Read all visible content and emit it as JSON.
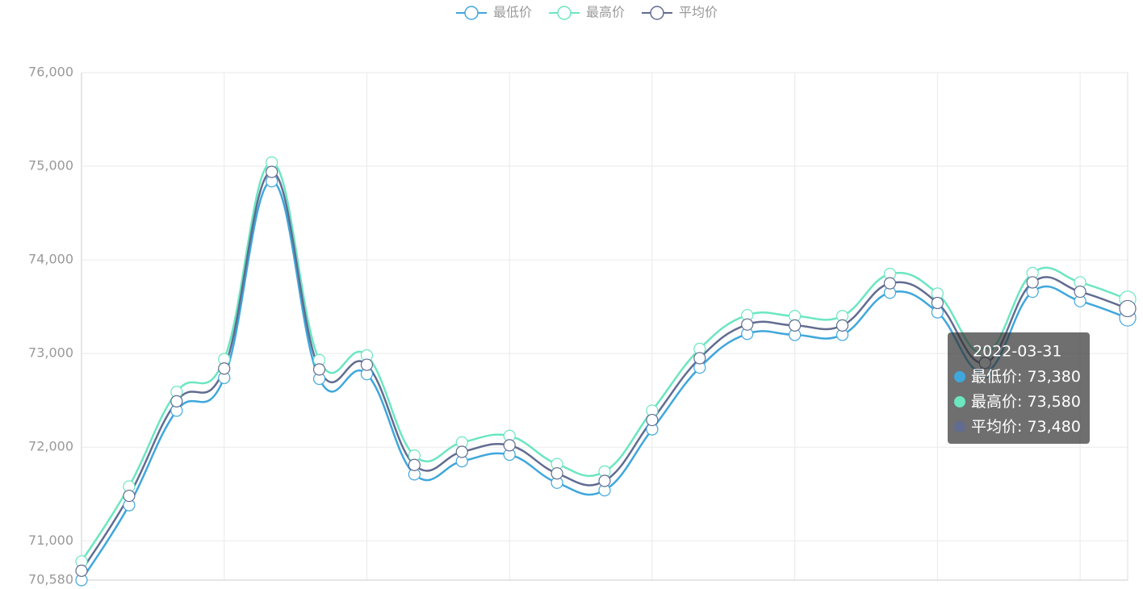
{
  "chart_data": {
    "type": "line",
    "categories": [
      null,
      null,
      null,
      null,
      null,
      null,
      null,
      null,
      null,
      null,
      null,
      null,
      null,
      null,
      null,
      null,
      null,
      null,
      null,
      null,
      null,
      null,
      "2022-03-31"
    ],
    "series": [
      {
        "name": "最低价",
        "color": "#3fa7dc",
        "values": [
          70580,
          71380,
          72390,
          72740,
          74840,
          72730,
          72780,
          71710,
          71850,
          71920,
          71620,
          71540,
          72190,
          72850,
          73210,
          73200,
          73200,
          73650,
          73440,
          72800,
          73660,
          73560,
          73380
        ],
        "value_labels": [
          null,
          null,
          null,
          null,
          null,
          null,
          null,
          null,
          null,
          null,
          null,
          null,
          null,
          null,
          null,
          null,
          null,
          null,
          null,
          null,
          null,
          null,
          "73,380"
        ]
      },
      {
        "name": "最高价",
        "color": "#6be6c1",
        "values": [
          70780,
          71580,
          72590,
          72940,
          75040,
          72930,
          72980,
          71910,
          72050,
          72120,
          71820,
          71740,
          72390,
          73050,
          73410,
          73400,
          73400,
          73850,
          73640,
          73000,
          73860,
          73760,
          73580
        ],
        "value_labels": [
          null,
          null,
          null,
          null,
          null,
          null,
          null,
          null,
          null,
          null,
          null,
          null,
          null,
          null,
          null,
          null,
          null,
          null,
          null,
          null,
          null,
          null,
          "73,580"
        ]
      },
      {
        "name": "平均价",
        "color": "#626c91",
        "values": [
          70680,
          71480,
          72490,
          72840,
          74940,
          72830,
          72880,
          71810,
          71950,
          72020,
          71720,
          71640,
          72290,
          72950,
          73310,
          73300,
          73300,
          73750,
          73540,
          72900,
          73760,
          73660,
          73480
        ],
        "value_labels": [
          null,
          null,
          null,
          null,
          null,
          null,
          null,
          null,
          null,
          null,
          null,
          null,
          null,
          null,
          null,
          null,
          null,
          null,
          null,
          null,
          null,
          null,
          "73,480"
        ]
      }
    ],
    "ylim": [
      70580,
      76000
    ],
    "yticks": [
      {
        "value": 70580,
        "label": "70,580"
      },
      {
        "value": 71000,
        "label": "71,000"
      },
      {
        "value": 72000,
        "label": "72,000"
      },
      {
        "value": 73000,
        "label": "73,000"
      },
      {
        "value": 74000,
        "label": "74,000"
      },
      {
        "value": 75000,
        "label": "75,000"
      },
      {
        "value": 76000,
        "label": "76,000"
      }
    ],
    "grid": true,
    "legend": "top"
  }
}
